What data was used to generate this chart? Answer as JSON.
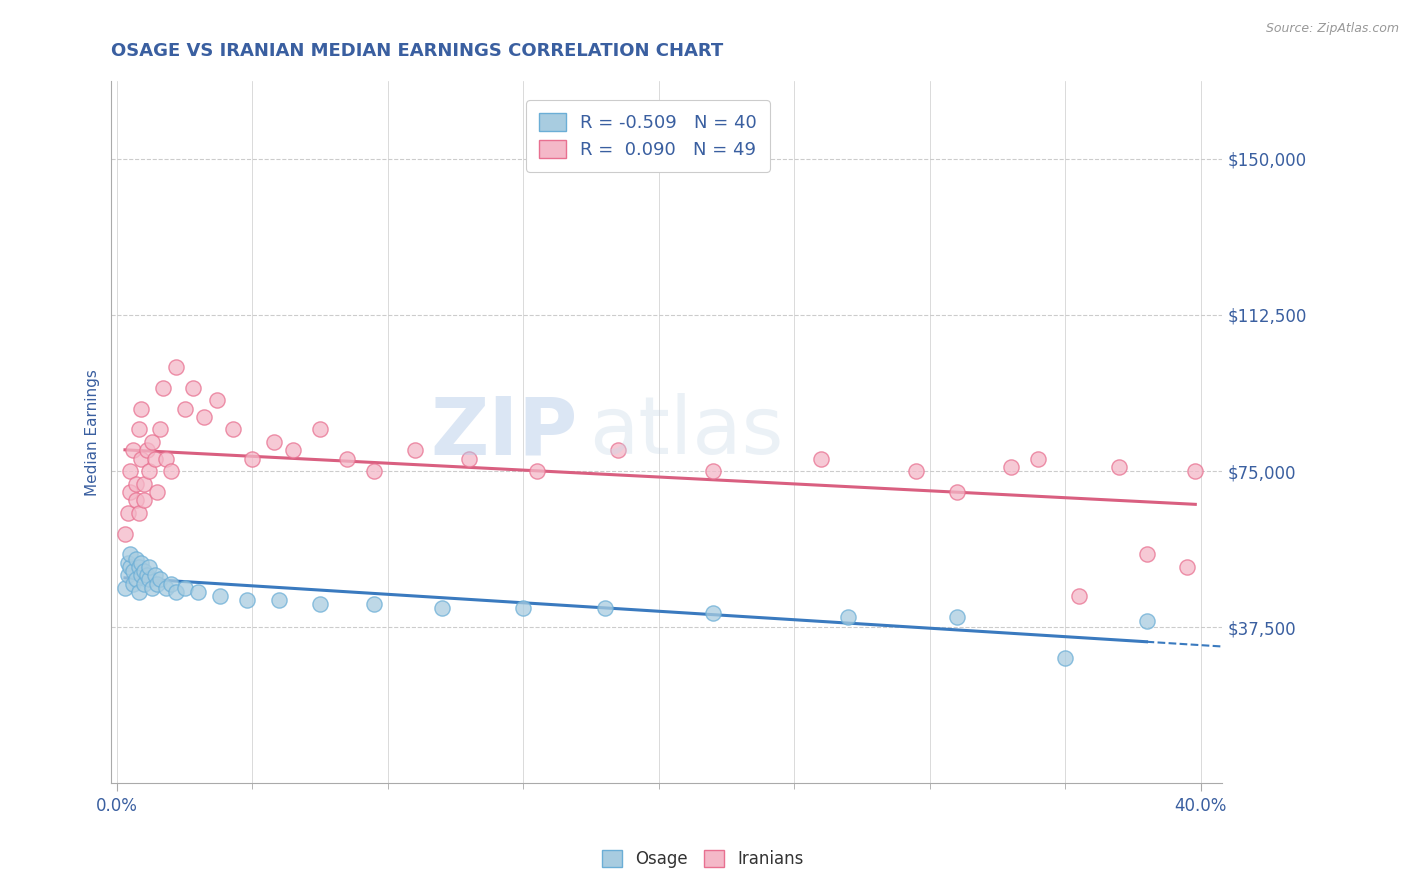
{
  "title": "OSAGE VS IRANIAN MEDIAN EARNINGS CORRELATION CHART",
  "source": "Source: ZipAtlas.com",
  "ylabel": "Median Earnings",
  "xlim": [
    -0.002,
    0.408
  ],
  "ylim": [
    0,
    168750
  ],
  "ytick_labels": [
    "$37,500",
    "$75,000",
    "$112,500",
    "$150,000"
  ],
  "ytick_values": [
    37500,
    75000,
    112500,
    150000
  ],
  "watermark_zip": "ZIP",
  "watermark_atlas": "atlas",
  "osage_color": "#a8cce0",
  "osage_edge_color": "#6baed6",
  "iranian_color": "#f4b8c8",
  "iranian_edge_color": "#e87090",
  "osage_line_color": "#3a7abf",
  "iranian_line_color": "#d95f80",
  "background_color": "#ffffff",
  "grid_color": "#cccccc",
  "title_color": "#3a5fa0",
  "axis_label_color": "#3a5fa0",
  "tick_label_color": "#3a5fa0",
  "legend_color": "#3a5fa0",
  "source_color": "#999999",
  "osage_x": [
    0.003,
    0.004,
    0.004,
    0.005,
    0.005,
    0.006,
    0.006,
    0.007,
    0.007,
    0.008,
    0.008,
    0.009,
    0.009,
    0.01,
    0.01,
    0.011,
    0.012,
    0.012,
    0.013,
    0.014,
    0.015,
    0.016,
    0.018,
    0.02,
    0.022,
    0.025,
    0.03,
    0.038,
    0.048,
    0.06,
    0.075,
    0.095,
    0.12,
    0.15,
    0.18,
    0.22,
    0.27,
    0.31,
    0.35,
    0.38
  ],
  "osage_y": [
    47000,
    50000,
    53000,
    52000,
    55000,
    48000,
    51000,
    54000,
    49000,
    52000,
    46000,
    50000,
    53000,
    48000,
    51000,
    50000,
    49000,
    52000,
    47000,
    50000,
    48000,
    49000,
    47000,
    48000,
    46000,
    47000,
    46000,
    45000,
    44000,
    44000,
    43000,
    43000,
    42000,
    42000,
    42000,
    41000,
    40000,
    40000,
    30000,
    39000
  ],
  "iranian_x": [
    0.003,
    0.004,
    0.005,
    0.005,
    0.006,
    0.007,
    0.007,
    0.008,
    0.008,
    0.009,
    0.009,
    0.01,
    0.01,
    0.011,
    0.012,
    0.013,
    0.014,
    0.015,
    0.016,
    0.017,
    0.018,
    0.02,
    0.022,
    0.025,
    0.028,
    0.032,
    0.037,
    0.043,
    0.05,
    0.058,
    0.065,
    0.075,
    0.085,
    0.095,
    0.11,
    0.13,
    0.155,
    0.185,
    0.22,
    0.26,
    0.295,
    0.31,
    0.33,
    0.34,
    0.355,
    0.37,
    0.38,
    0.395,
    0.398
  ],
  "iranian_y": [
    60000,
    65000,
    70000,
    75000,
    80000,
    68000,
    72000,
    65000,
    85000,
    78000,
    90000,
    72000,
    68000,
    80000,
    75000,
    82000,
    78000,
    70000,
    85000,
    95000,
    78000,
    75000,
    100000,
    90000,
    95000,
    88000,
    92000,
    85000,
    78000,
    82000,
    80000,
    85000,
    78000,
    75000,
    80000,
    78000,
    75000,
    80000,
    75000,
    78000,
    75000,
    70000,
    76000,
    78000,
    45000,
    76000,
    55000,
    52000,
    75000
  ]
}
